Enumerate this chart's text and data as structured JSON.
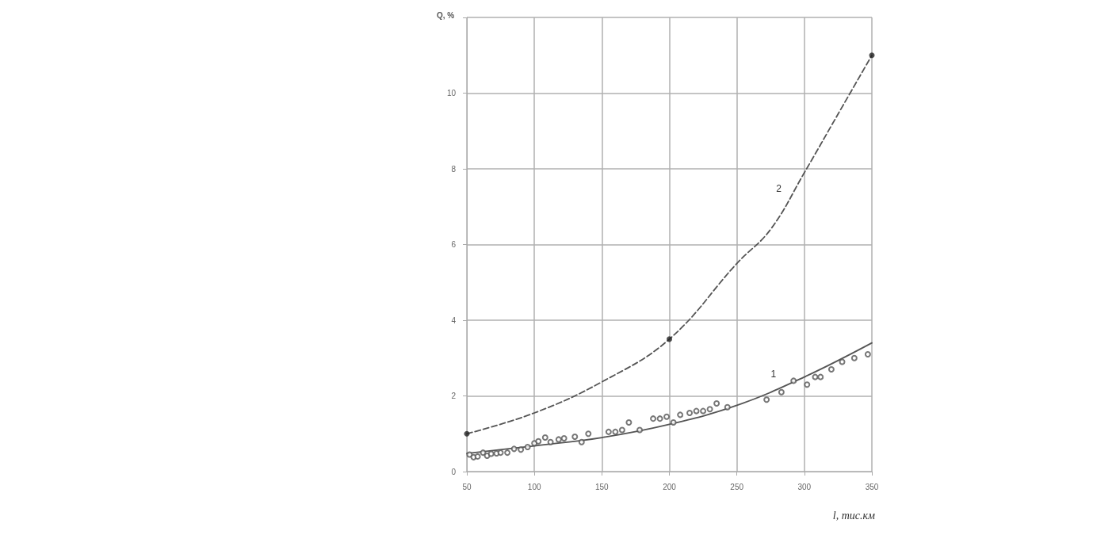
{
  "chart_data": {
    "type": "scatter",
    "xlabel": "l, тис.км",
    "ylabel": "Q, %",
    "xlim": [
      50,
      350
    ],
    "xticks": [
      50,
      100,
      150,
      200,
      250,
      300,
      350
    ],
    "ylim": [
      0,
      12
    ],
    "yticks": [
      0,
      2,
      4,
      6,
      8,
      10,
      {
        "value": 12,
        "label": null
      }
    ],
    "grid": true,
    "series": [
      {
        "marker": "circle",
        "color": "#555555",
        "x": [
          52,
          55,
          58,
          62,
          65,
          68,
          72,
          75,
          80,
          85,
          90,
          95,
          100,
          103,
          108,
          112,
          118,
          122,
          130,
          135,
          140,
          155,
          160,
          165,
          170,
          178,
          188,
          193,
          198,
          203,
          208,
          215,
          220,
          225,
          230,
          235,
          243,
          272,
          283,
          292,
          302,
          308,
          312,
          320,
          328,
          337,
          347
        ],
        "values": [
          0.45,
          0.38,
          0.4,
          0.5,
          0.42,
          0.47,
          0.48,
          0.5,
          0.5,
          0.6,
          0.58,
          0.65,
          0.75,
          0.8,
          0.9,
          0.78,
          0.85,
          0.88,
          0.92,
          0.78,
          1.0,
          1.05,
          1.05,
          1.1,
          1.3,
          1.1,
          1.4,
          1.4,
          1.45,
          1.3,
          1.5,
          1.55,
          1.6,
          1.6,
          1.65,
          1.8,
          1.7,
          1.9,
          2.1,
          2.4,
          2.3,
          2.5,
          2.5,
          2.7,
          2.9,
          3.0,
          3.1
        ]
      },
      {
        "type": "line",
        "marker": "none",
        "line_style": "solid",
        "color": "#555555",
        "x": [
          50,
          100,
          150,
          200,
          250,
          300,
          350
        ],
        "values": [
          0.48,
          0.68,
          0.9,
          1.25,
          1.75,
          2.5,
          3.4
        ]
      },
      {
        "type": "line",
        "marker": "none",
        "line_style": "dashed",
        "color": "#555555",
        "x": [
          50,
          100,
          150,
          200,
          250,
          275,
          300,
          325,
          350
        ],
        "values": [
          1.0,
          1.55,
          2.37,
          3.5,
          5.5,
          6.4,
          7.9,
          9.45,
          11.0
        ]
      },
      {
        "marker": "circle",
        "color": "#222222",
        "x": [
          50,
          200,
          350
        ],
        "values": [
          1.0,
          3.5,
          11.0
        ]
      }
    ],
    "annotations": [
      {
        "text": "1",
        "x": 283,
        "y": 2.2
      },
      {
        "text": "2",
        "x": 287,
        "y": 7.1
      }
    ]
  }
}
